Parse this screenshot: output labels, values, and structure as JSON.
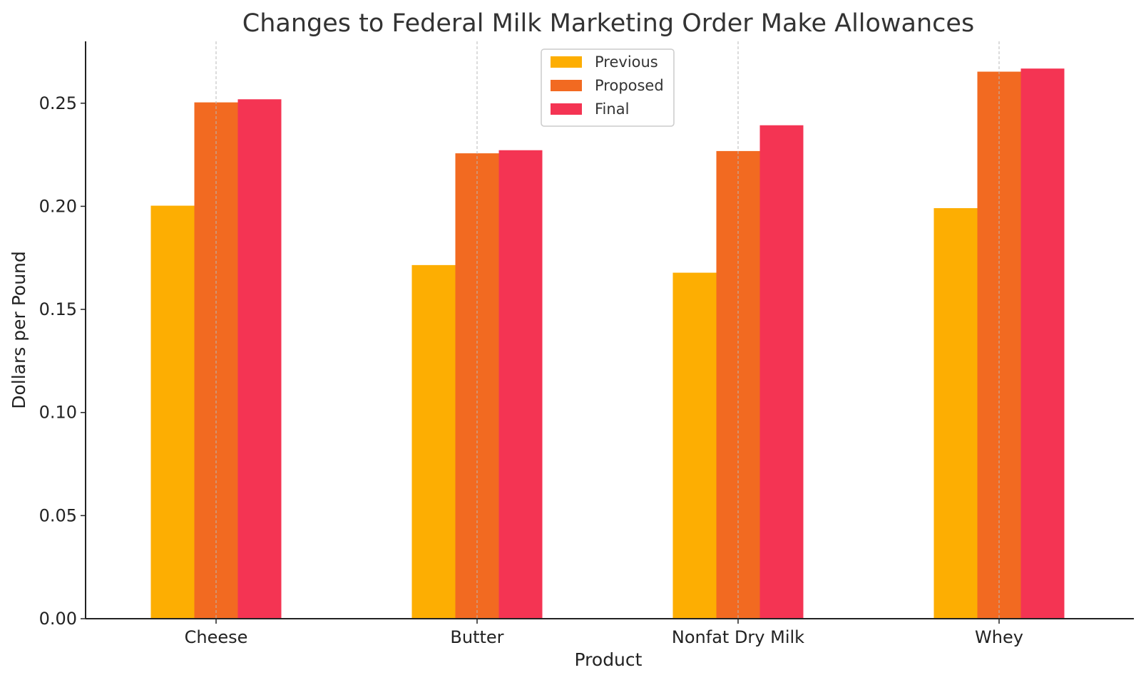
{
  "chart_data": {
    "type": "bar",
    "title": "Changes to Federal Milk Marketing Order Make Allowances",
    "xlabel": "Product",
    "ylabel": "Dollars per Pound",
    "categories": [
      "Cheese",
      "Butter",
      "Nonfat Dry Milk",
      "Whey"
    ],
    "series": [
      {
        "name": "Previous",
        "color": "#FDAE02",
        "values": [
          0.2003,
          0.1715,
          0.1678,
          0.1991
        ]
      },
      {
        "name": "Proposed",
        "color": "#F26A21",
        "values": [
          0.2504,
          0.2257,
          0.2268,
          0.2653
        ]
      },
      {
        "name": "Final",
        "color": "#F43453",
        "values": [
          0.2519,
          0.2272,
          0.2393,
          0.2668
        ]
      }
    ],
    "ylim": [
      0,
      0.28
    ],
    "yticks": [
      "0.00",
      "0.05",
      "0.10",
      "0.15",
      "0.20",
      "0.25"
    ],
    "grid": "x-only dashed",
    "legend_position": "top-center"
  }
}
